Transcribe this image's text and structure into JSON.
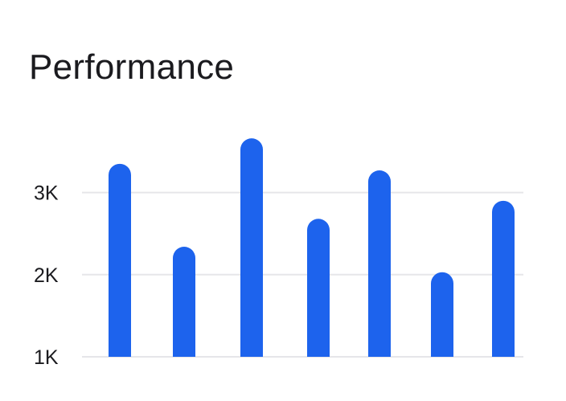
{
  "chart_data": {
    "type": "bar",
    "title": "Performance",
    "xlabel": "",
    "ylabel": "",
    "categories": [
      "",
      "",
      "",
      "",
      "",
      "",
      ""
    ],
    "values": [
      3350,
      2340,
      3660,
      2680,
      3270,
      2030,
      2900
    ],
    "ylim": [
      1000,
      3900
    ],
    "y_ticks": [
      1000,
      2000,
      3000
    ],
    "y_tick_labels": [
      "1K",
      "2K",
      "3K"
    ],
    "grid": true,
    "legend": "none",
    "colors": {
      "bar": "#1d63ed",
      "grid": "#e6e6e9",
      "text": "#1b1b1f"
    }
  }
}
